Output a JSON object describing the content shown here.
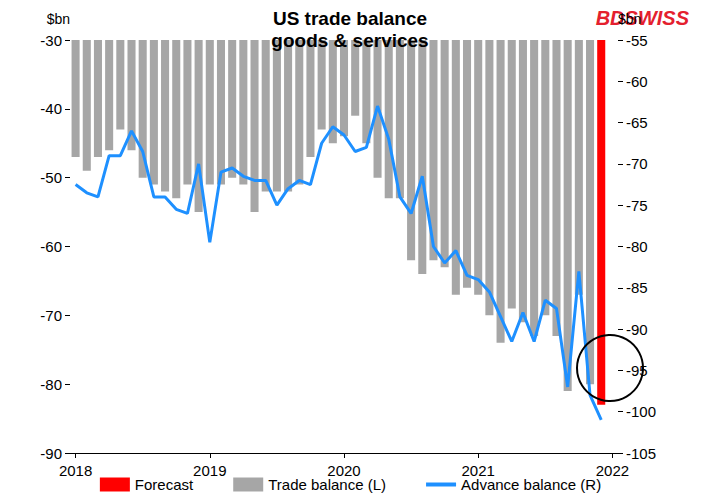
{
  "chart_data": {
    "type": "bar",
    "title": "US trade balance\ngoods & services",
    "logo_text": "BDSWISS",
    "ylabel": "$bn",
    "y2label": "$bn",
    "categories": [
      "2018",
      null,
      null,
      null,
      null,
      null,
      null,
      null,
      null,
      null,
      null,
      null,
      "2019",
      null,
      null,
      null,
      null,
      null,
      null,
      null,
      null,
      null,
      null,
      null,
      "2020",
      null,
      null,
      null,
      null,
      null,
      null,
      null,
      null,
      null,
      null,
      null,
      "2021",
      null,
      null,
      null,
      null,
      null,
      null,
      null,
      null,
      null,
      null,
      null,
      "2022"
    ],
    "series": [
      {
        "name": "Forecast",
        "type": "bar",
        "color": "#ff0000",
        "axis": "y",
        "values": [
          null,
          null,
          null,
          null,
          null,
          null,
          null,
          null,
          null,
          null,
          null,
          null,
          null,
          null,
          null,
          null,
          null,
          null,
          null,
          null,
          null,
          null,
          null,
          null,
          null,
          null,
          null,
          null,
          null,
          null,
          null,
          null,
          null,
          null,
          null,
          null,
          null,
          null,
          null,
          null,
          null,
          null,
          null,
          null,
          null,
          null,
          null,
          -83,
          null
        ]
      },
      {
        "name": "Trade balance (L)",
        "type": "bar",
        "color": "#a6a6a6",
        "axis": "y",
        "values": [
          -47,
          -49,
          -47,
          -46,
          -43,
          -46,
          -50,
          -51,
          -52,
          -53,
          -51,
          -55,
          -51,
          -51,
          -50,
          -51,
          -55,
          -52,
          -52,
          -52,
          -51,
          -47,
          -43,
          -45,
          -44,
          -41,
          -45,
          -50,
          -53,
          -53,
          -62,
          -64,
          -62,
          -63,
          -67,
          -66,
          -67,
          -70,
          -74,
          -69,
          -71,
          -73,
          -70,
          -73,
          -81,
          -67,
          -80,
          null,
          null
        ]
      },
      {
        "name": "Advance balance (R)",
        "type": "line",
        "color": "#1e90ff",
        "axis": "y2",
        "values": [
          -72.5,
          -73.5,
          -74,
          -69,
          -69,
          -66,
          -68.5,
          -74,
          -74,
          -75.5,
          -76,
          -70,
          -79.5,
          -71,
          -70.5,
          -71.5,
          -72,
          -72,
          -75,
          -73,
          -72,
          -72.5,
          -67.5,
          -65.5,
          -66.5,
          -68.5,
          -68,
          -63,
          -67,
          -74,
          -76,
          -71.5,
          -80,
          -82,
          -80.5,
          -83.5,
          -84,
          -85.5,
          -88.5,
          -91.5,
          -88,
          -91.5,
          -86.5,
          -87.5,
          -97,
          -83,
          -98,
          -101,
          null
        ]
      }
    ],
    "ylim": [
      -90,
      -30
    ],
    "yticks": [
      -90,
      -80,
      -70,
      -60,
      -50,
      -40,
      -30
    ],
    "y2lim": [
      -105,
      -55
    ],
    "y2ticks": [
      -105,
      -100,
      -95,
      -90,
      -85,
      -80,
      -75,
      -70,
      -65,
      -60,
      -55
    ],
    "grid": false,
    "legend": "bottom"
  }
}
